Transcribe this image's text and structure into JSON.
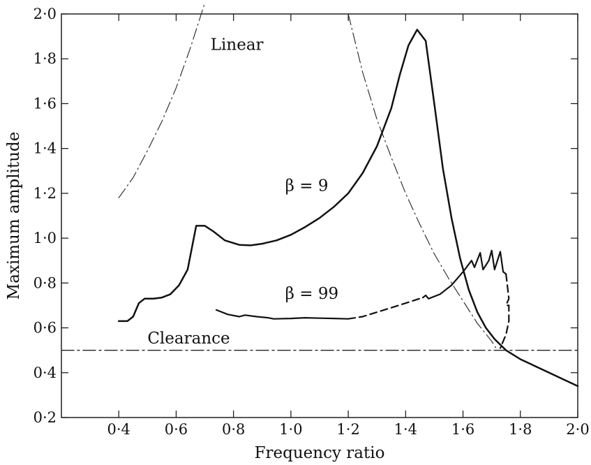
{
  "chart_data": {
    "type": "line",
    "title": "",
    "xlabel": "Frequency ratio",
    "ylabel": "Maximum amplitude",
    "xlim": [
      0.2,
      2.0
    ],
    "ylim": [
      0.2,
      2.0
    ],
    "x_ticks": [
      {
        "value": 0.4,
        "label": "0·4"
      },
      {
        "value": 0.6,
        "label": "0·6"
      },
      {
        "value": 0.8,
        "label": "0·8"
      },
      {
        "value": 1.0,
        "label": "1·0"
      },
      {
        "value": 1.2,
        "label": "1·2"
      },
      {
        "value": 1.4,
        "label": "1·4"
      },
      {
        "value": 1.6,
        "label": "1·6"
      },
      {
        "value": 1.8,
        "label": "1·8"
      },
      {
        "value": 2.0,
        "label": "2·0"
      }
    ],
    "y_ticks": [
      {
        "value": 0.2,
        "label": "0·2"
      },
      {
        "value": 0.4,
        "label": "0·4"
      },
      {
        "value": 0.6,
        "label": "0·6"
      },
      {
        "value": 0.8,
        "label": "0·8"
      },
      {
        "value": 1.0,
        "label": "1·0"
      },
      {
        "value": 1.2,
        "label": "1·2"
      },
      {
        "value": 1.4,
        "label": "1·4"
      },
      {
        "value": 1.6,
        "label": "1·6"
      },
      {
        "value": 1.8,
        "label": "1·8"
      },
      {
        "value": 2.0,
        "label": "2·0"
      }
    ],
    "grid": false,
    "series": [
      {
        "name": "Linear",
        "style": "dash-dot-thin",
        "color": "#222222",
        "segments": [
          {
            "x": [
              0.4,
              0.45,
              0.5,
              0.55,
              0.6,
              0.65,
              0.7
            ],
            "y": [
              1.18,
              1.27,
              1.39,
              1.52,
              1.67,
              1.85,
              2.05
            ]
          },
          {
            "x": [
              1.2,
              1.25,
              1.3,
              1.35,
              1.4,
              1.45,
              1.5,
              1.55,
              1.6,
              1.65,
              1.7,
              1.72
            ],
            "y": [
              2.0,
              1.74,
              1.53,
              1.36,
              1.2,
              1.06,
              0.93,
              0.82,
              0.72,
              0.62,
              0.54,
              0.5
            ]
          }
        ]
      },
      {
        "name": "β = 9",
        "style": "solid-thick",
        "color": "#111111",
        "segments": [
          {
            "x": [
              0.4,
              0.43,
              0.45,
              0.47,
              0.49,
              0.52,
              0.55,
              0.58,
              0.61,
              0.64,
              0.67,
              0.7,
              0.73,
              0.77,
              0.82,
              0.86,
              0.9,
              0.95,
              1.0,
              1.05,
              1.1,
              1.15,
              1.2,
              1.25,
              1.3,
              1.35,
              1.38,
              1.41,
              1.44,
              1.47,
              1.5,
              1.53,
              1.56,
              1.59,
              1.62,
              1.65,
              1.68,
              1.71,
              1.75,
              1.8,
              1.85,
              1.9,
              1.95,
              2.0
            ],
            "y": [
              0.63,
              0.63,
              0.65,
              0.71,
              0.73,
              0.73,
              0.735,
              0.75,
              0.79,
              0.86,
              1.055,
              1.055,
              1.03,
              0.99,
              0.97,
              0.968,
              0.975,
              0.99,
              1.015,
              1.05,
              1.09,
              1.14,
              1.2,
              1.29,
              1.41,
              1.58,
              1.73,
              1.86,
              1.93,
              1.88,
              1.6,
              1.31,
              1.09,
              0.91,
              0.77,
              0.67,
              0.6,
              0.55,
              0.5,
              0.46,
              0.43,
              0.4,
              0.37,
              0.34
            ]
          }
        ]
      },
      {
        "name": "β = 99",
        "style": "solid-medium",
        "color": "#111111",
        "segments": [
          {
            "x": [
              0.74,
              0.78,
              0.82,
              0.84,
              0.88,
              0.92,
              0.94,
              1.0,
              1.05,
              1.1,
              1.15,
              1.2
            ],
            "y": [
              0.68,
              0.66,
              0.65,
              0.657,
              0.65,
              0.645,
              0.64,
              0.642,
              0.645,
              0.643,
              0.642,
              0.64
            ]
          },
          {
            "x": [
              1.2,
              1.25,
              1.3,
              1.35,
              1.4,
              1.46
            ],
            "y": [
              0.64,
              0.65,
              0.67,
              0.69,
              0.71,
              0.735
            ],
            "dashed": true
          },
          {
            "x": [
              1.46,
              1.47,
              1.48,
              1.52,
              1.56,
              1.6,
              1.63,
              1.64,
              1.66,
              1.67,
              1.69,
              1.7,
              1.71,
              1.73,
              1.74,
              1.75
            ],
            "y": [
              0.735,
              0.745,
              0.73,
              0.75,
              0.79,
              0.85,
              0.9,
              0.87,
              0.935,
              0.86,
              0.9,
              0.945,
              0.86,
              0.94,
              0.85,
              0.84
            ]
          },
          {
            "x": [
              1.75,
              1.76,
              1.75,
              1.76,
              1.76,
              1.75,
              1.73
            ],
            "y": [
              0.84,
              0.73,
              0.7,
              0.7,
              0.63,
              0.57,
              0.51
            ],
            "dashed": true
          }
        ]
      },
      {
        "name": "Clearance",
        "style": "dash-dot",
        "color": "#222222",
        "segments": [
          {
            "x": [
              0.2,
              2.0
            ],
            "y": [
              0.5,
              0.5
            ]
          }
        ]
      }
    ],
    "annotations": [
      {
        "text": "Linear",
        "x": 0.72,
        "y": 1.84
      },
      {
        "text": "β = 9",
        "x": 0.98,
        "y": 1.21
      },
      {
        "text": "β = 99",
        "x": 0.98,
        "y": 0.73
      },
      {
        "text": "Clearance",
        "x": 0.5,
        "y": 0.53
      }
    ]
  }
}
